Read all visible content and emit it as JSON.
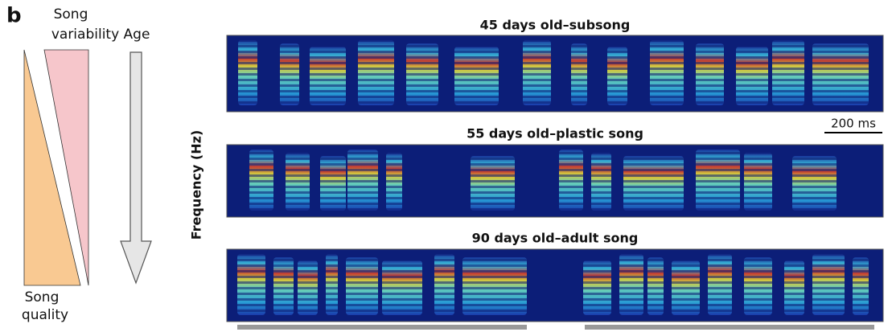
{
  "panel_label": "b",
  "song_variability_label": [
    "Song",
    "variability"
  ],
  "age_label": "Age",
  "song_quality_label": [
    "Song",
    "quality"
  ],
  "y_axis_label": "Frequency (Hz)",
  "spectrograms": [
    {
      "title": "45 days old–subsong"
    },
    {
      "title": "55 days old–plastic song"
    },
    {
      "title": "90 days old–adult song"
    }
  ],
  "scale_bar_label": "200 ms"
}
